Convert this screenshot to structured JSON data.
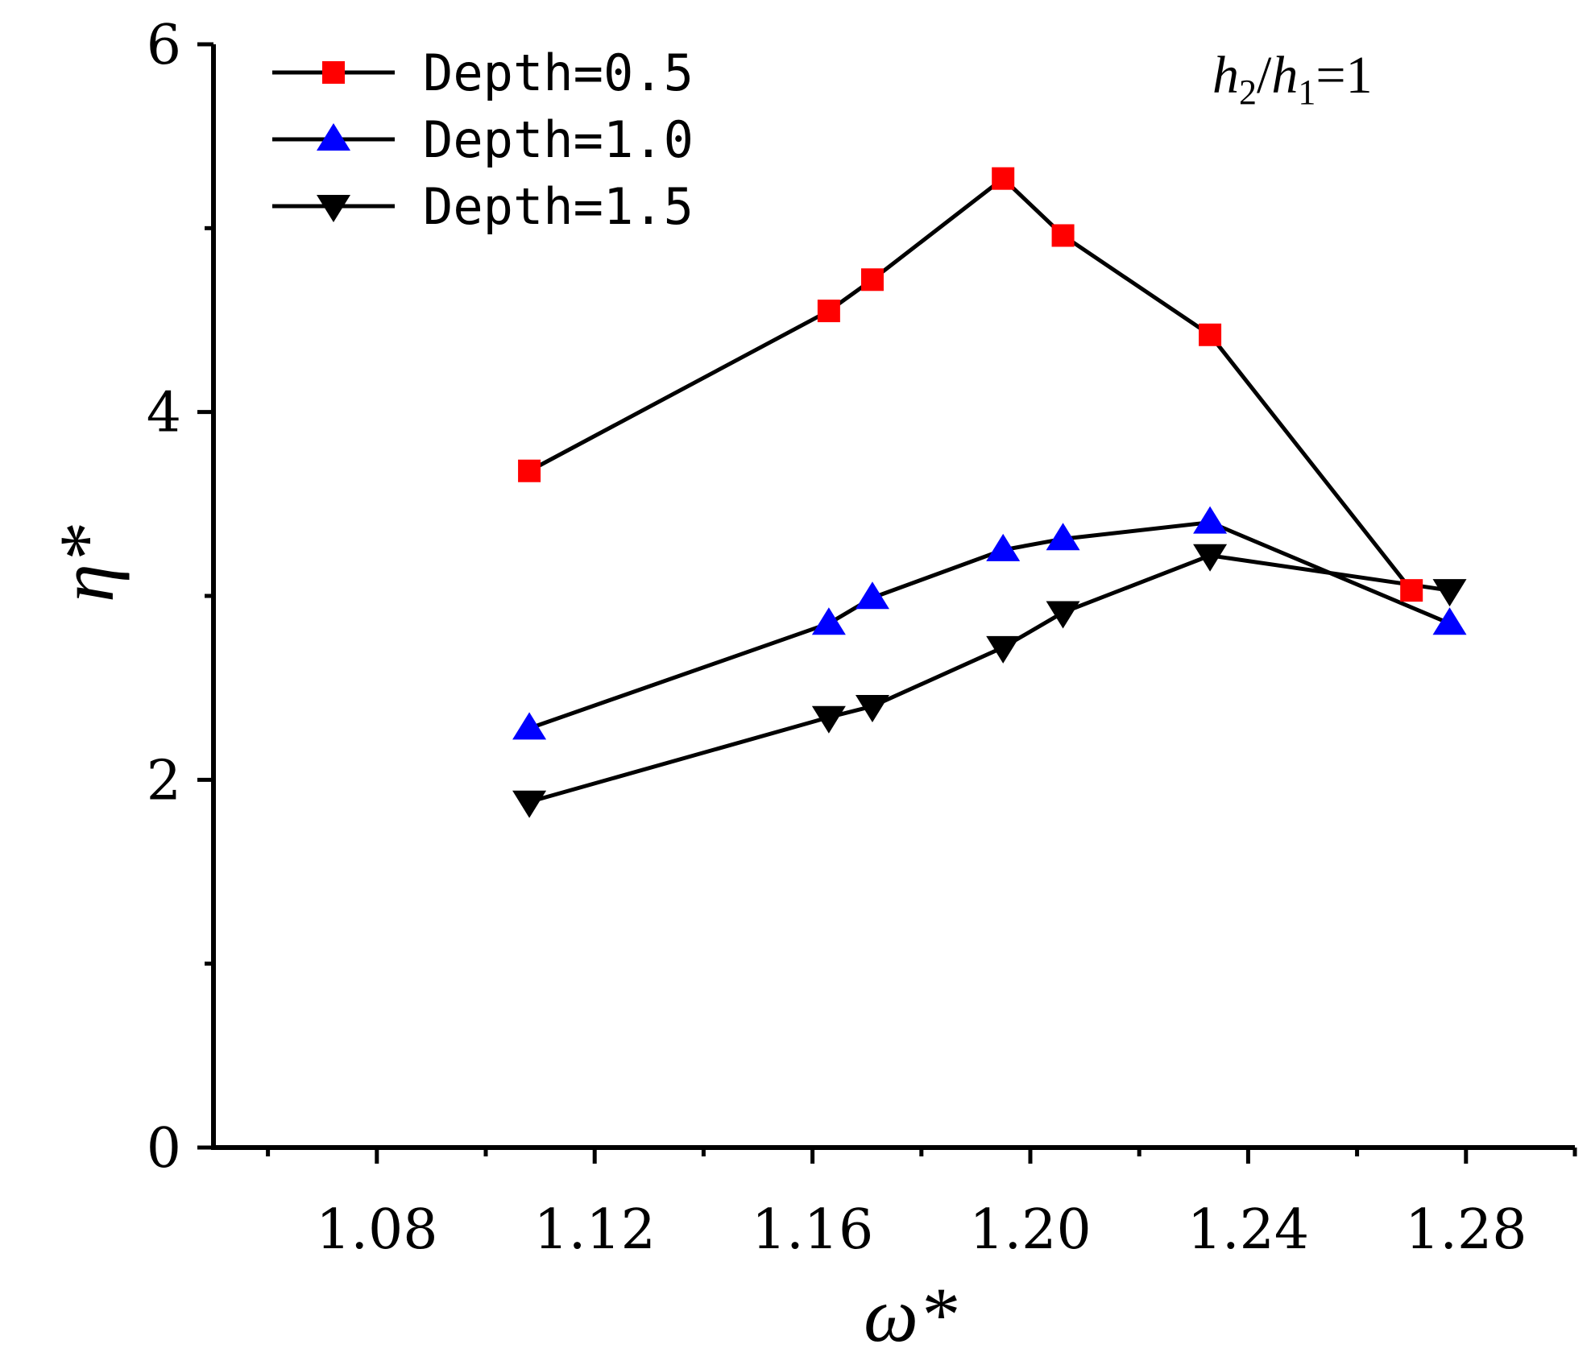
{
  "chart_data": {
    "type": "line",
    "title": "",
    "xlabel": "ω*",
    "ylabel": "η*",
    "xlim": [
      1.05,
      1.3
    ],
    "ylim": [
      0,
      6
    ],
    "x_ticks": [
      "1.08",
      "1.12",
      "1.16",
      "1.20",
      "1.24",
      "1.28"
    ],
    "y_ticks": [
      "0",
      "2",
      "4",
      "6"
    ],
    "x_tick_values": [
      1.08,
      1.12,
      1.16,
      1.2,
      1.24,
      1.28
    ],
    "y_tick_values": [
      0,
      2,
      4,
      6
    ],
    "x_minor_ticks": [
      1.06,
      1.1,
      1.14,
      1.18,
      1.22,
      1.26,
      1.3
    ],
    "y_minor_ticks": [
      1,
      3,
      5
    ],
    "grid": false,
    "legend_position": "top-left",
    "annotation": {
      "h2": "h",
      "sub2": "2",
      "slash": "/",
      "h1": "h",
      "sub1": "1",
      "eq": "=1"
    },
    "series": [
      {
        "name": "Depth=0.5",
        "color": "#ff0000",
        "marker": "square",
        "x": [
          1.108,
          1.163,
          1.171,
          1.195,
          1.206,
          1.233,
          1.27
        ],
        "y": [
          3.68,
          4.55,
          4.72,
          5.27,
          4.96,
          4.42,
          3.03
        ]
      },
      {
        "name": "Depth=1.0",
        "color": "#0000ff",
        "marker": "triangle-up",
        "x": [
          1.108,
          1.163,
          1.171,
          1.195,
          1.206,
          1.233,
          1.277
        ],
        "y": [
          2.28,
          2.85,
          2.99,
          3.25,
          3.31,
          3.4,
          2.85
        ]
      },
      {
        "name": "Depth=1.5",
        "color": "#000000",
        "marker": "triangle-down",
        "x": [
          1.108,
          1.163,
          1.171,
          1.195,
          1.206,
          1.233,
          1.277
        ],
        "y": [
          1.88,
          2.34,
          2.4,
          2.72,
          2.91,
          3.22,
          3.03
        ]
      }
    ]
  }
}
